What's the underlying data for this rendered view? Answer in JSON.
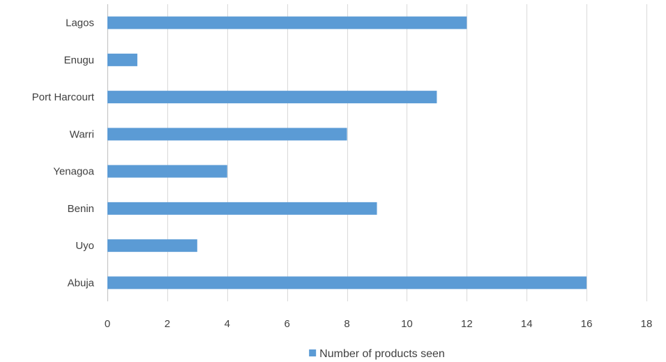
{
  "chart_data": {
    "type": "bar",
    "orientation": "horizontal",
    "categories": [
      "Lagos",
      "Enugu",
      "Port Harcourt",
      "Warri",
      "Yenagoa",
      "Benin",
      "Uyo",
      "Abuja"
    ],
    "series": [
      {
        "name": "Number of products seen",
        "values": [
          12,
          1,
          11,
          8,
          4,
          9,
          3,
          16
        ]
      }
    ],
    "title": "",
    "xlabel": "",
    "ylabel": "",
    "xlim": [
      0,
      18
    ],
    "x_ticks": [
      0,
      2,
      4,
      6,
      8,
      10,
      12,
      14,
      16,
      18
    ],
    "grid": "vertical",
    "legend": "bottom",
    "colors": {
      "bar": "#5b9bd5",
      "grid": "#d9d9d9",
      "text": "#404040"
    }
  }
}
